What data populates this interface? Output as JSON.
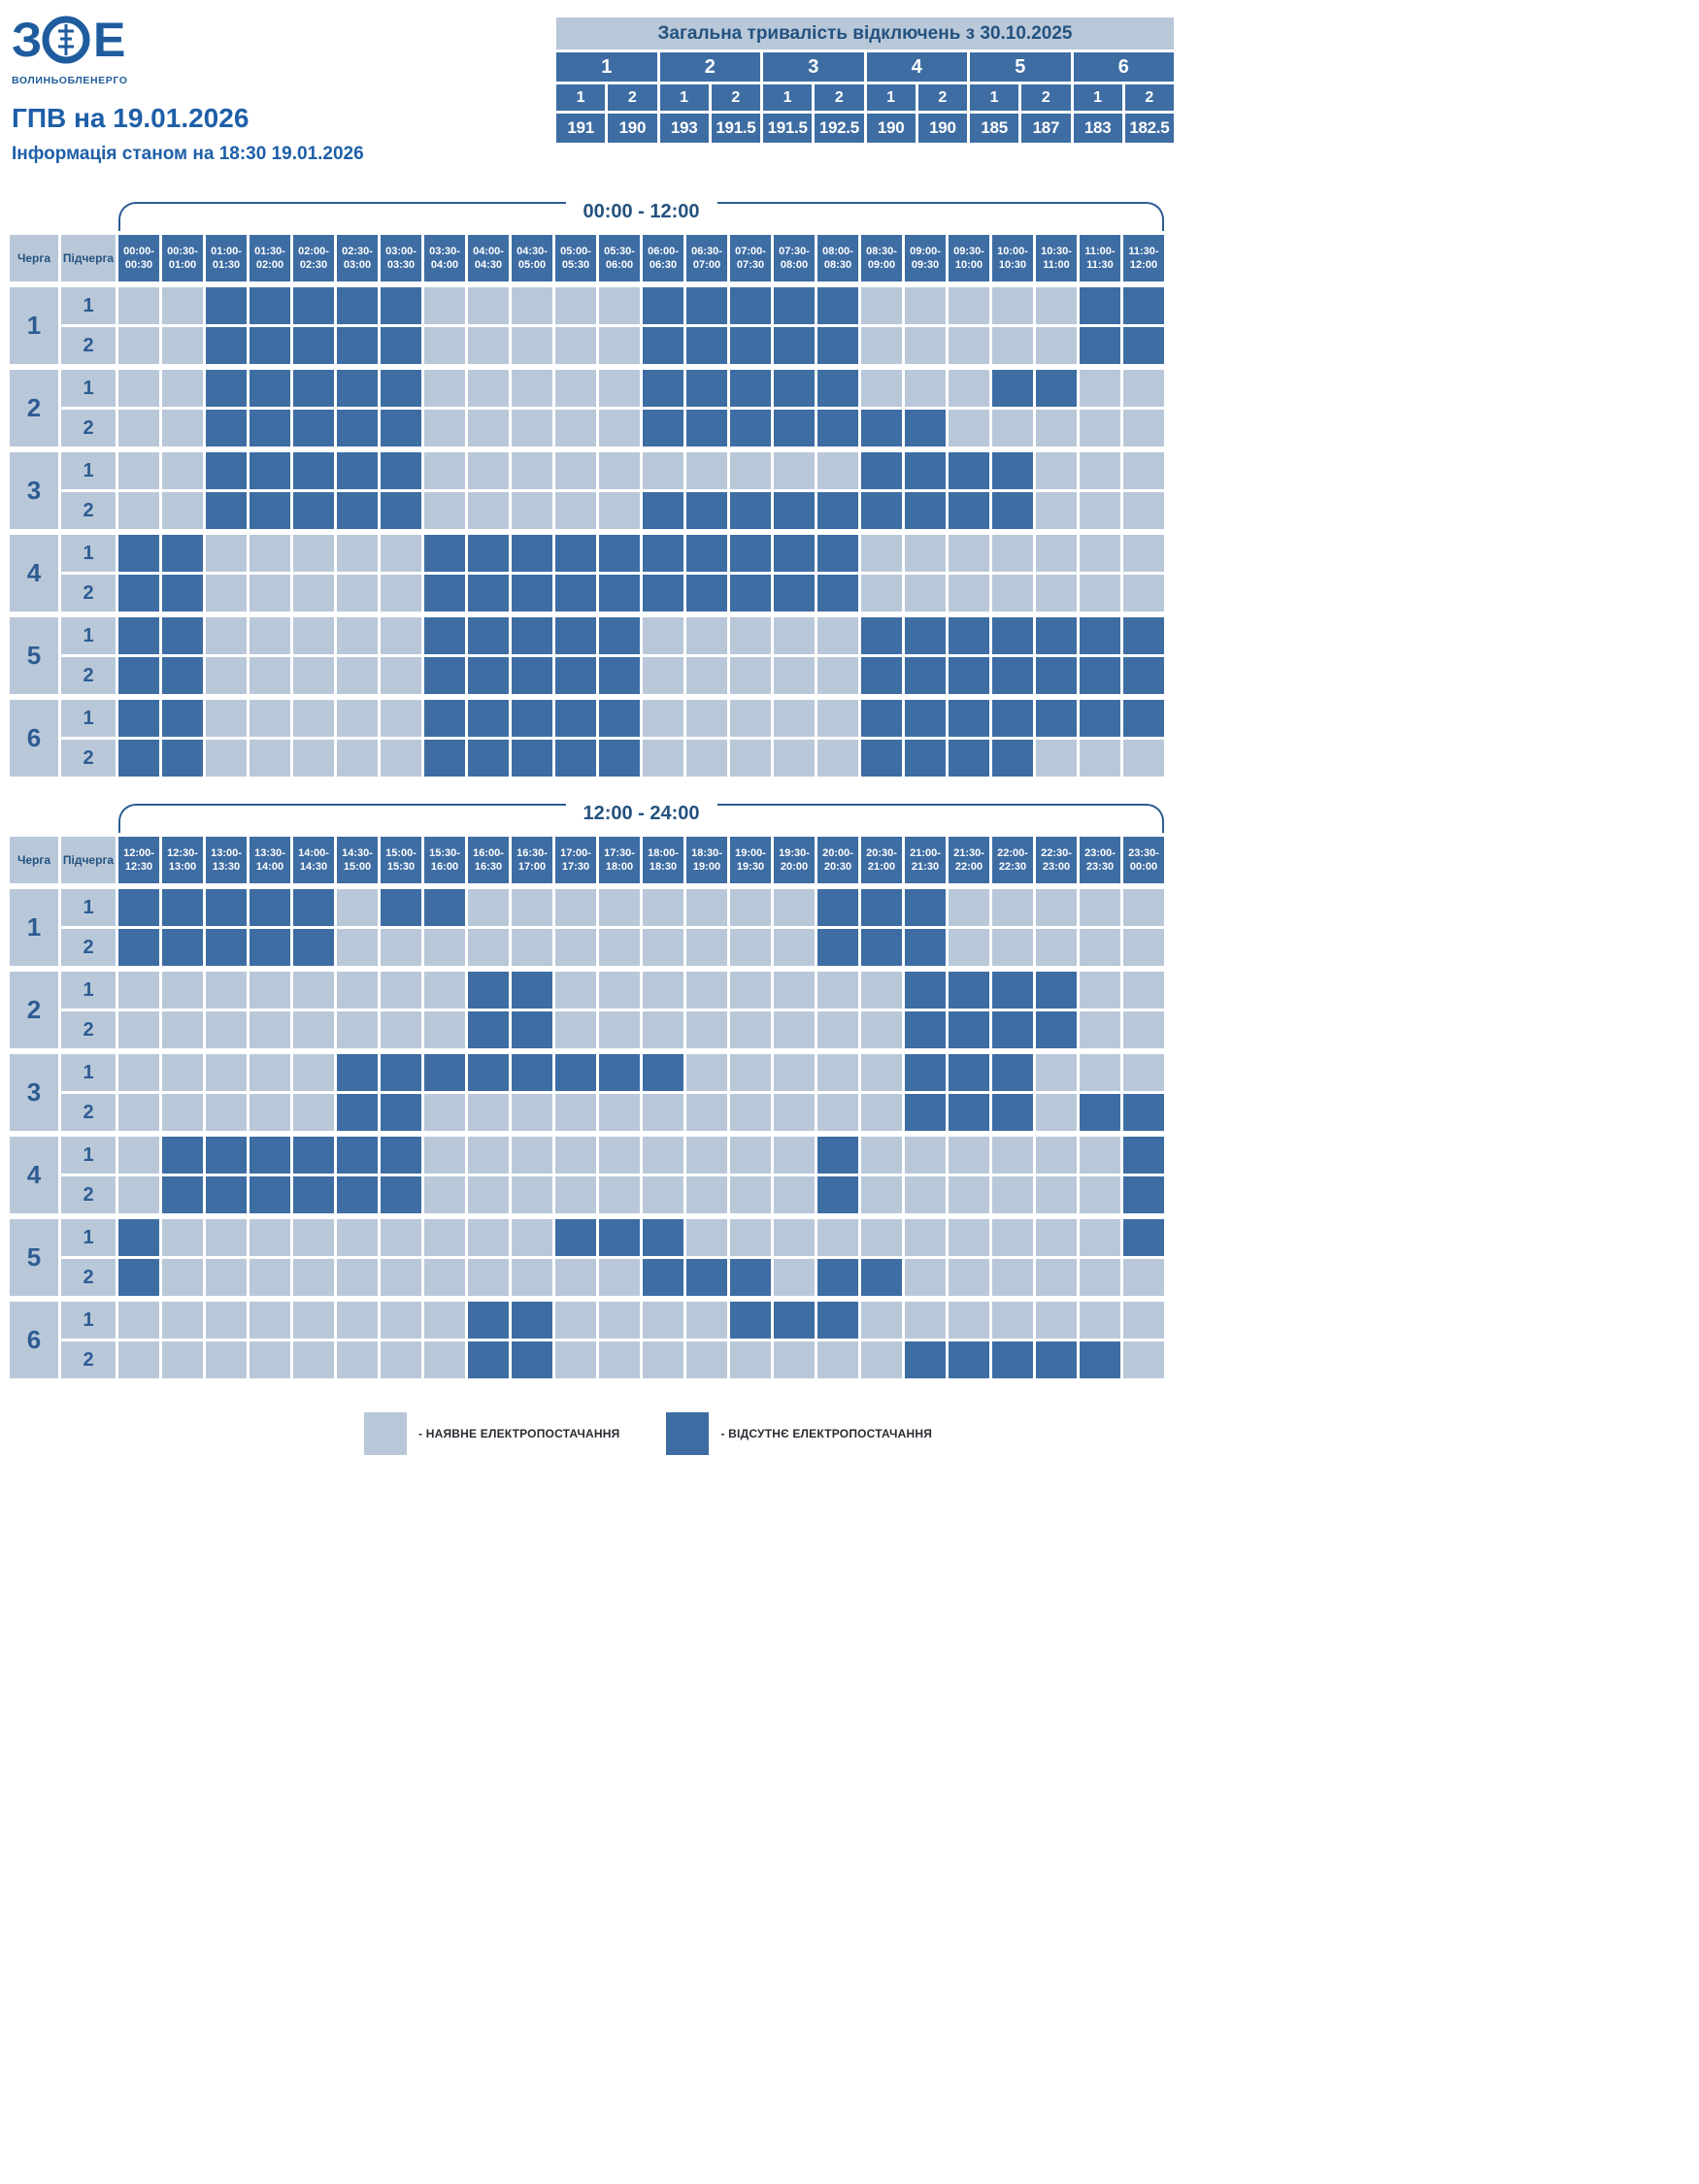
{
  "logo": {
    "mark_left": "З",
    "mark_right": "Е",
    "company": "ВОЛИНЬОБЛЕНЕРГО"
  },
  "header": {
    "title": "ГПВ на 19.01.2026",
    "subtitle": "Інформація станом на 18:30 19.01.2026"
  },
  "summary": {
    "title": "Загальна тривалість відключень з 30.10.2025",
    "queues": [
      "1",
      "2",
      "3",
      "4",
      "5",
      "6"
    ],
    "subqueues": [
      "1",
      "2",
      "1",
      "2",
      "1",
      "2",
      "1",
      "2",
      "1",
      "2",
      "1",
      "2"
    ],
    "totals": [
      "191",
      "190",
      "193",
      "191.5",
      "191.5",
      "192.5",
      "190",
      "190",
      "185",
      "187",
      "183",
      "182.5"
    ]
  },
  "grid_headers": {
    "queue": "Черга",
    "subqueue": "Підчерга"
  },
  "colors": {
    "on": "#b9c8d9",
    "off": "#3e6da3",
    "accent": "#1e5fa8"
  },
  "legend": {
    "on": "- НАЯВНЕ ЕЛЕКТРОПОСТАЧАННЯ",
    "off": "- ВІДСУТНЄ ЕЛЕКТРОПОСТАЧАННЯ"
  },
  "chart_data": [
    {
      "type": "heatmap",
      "title": "00:00 - 12:00",
      "encoding": {
        "0": "power available",
        "1": "power outage"
      },
      "time_slots": [
        "00:00-00:30",
        "00:30-01:00",
        "01:00-01:30",
        "01:30-02:00",
        "02:00-02:30",
        "02:30-03:00",
        "03:00-03:30",
        "03:30-04:00",
        "04:00-04:30",
        "04:30-05:00",
        "05:00-05:30",
        "05:30-06:00",
        "06:00-06:30",
        "06:30-07:00",
        "07:00-07:30",
        "07:30-08:00",
        "08:00-08:30",
        "08:30-09:00",
        "09:00-09:30",
        "09:30-10:00",
        "10:00-10:30",
        "10:30-11:00",
        "11:00-11:30",
        "11:30-12:00"
      ],
      "rows": [
        {
          "queue": "1",
          "subqueue": "1",
          "outage": "001111100000111110000011"
        },
        {
          "queue": "1",
          "subqueue": "2",
          "outage": "001111100000111110000011"
        },
        {
          "queue": "2",
          "subqueue": "1",
          "outage": "001111100000111110001100"
        },
        {
          "queue": "2",
          "subqueue": "2",
          "outage": "001111100000111111100000"
        },
        {
          "queue": "3",
          "subqueue": "1",
          "outage": "001111100000000001111000"
        },
        {
          "queue": "3",
          "subqueue": "2",
          "outage": "001111100000111111111000"
        },
        {
          "queue": "4",
          "subqueue": "1",
          "outage": "110000011111111110000000"
        },
        {
          "queue": "4",
          "subqueue": "2",
          "outage": "110000011111111110000000"
        },
        {
          "queue": "5",
          "subqueue": "1",
          "outage": "110000011111000001111111"
        },
        {
          "queue": "5",
          "subqueue": "2",
          "outage": "110000011111000001111111"
        },
        {
          "queue": "6",
          "subqueue": "1",
          "outage": "110000011111000001111111"
        },
        {
          "queue": "6",
          "subqueue": "2",
          "outage": "110000011111000001111000"
        }
      ]
    },
    {
      "type": "heatmap",
      "title": "12:00 - 24:00",
      "encoding": {
        "0": "power available",
        "1": "power outage"
      },
      "time_slots": [
        "12:00-12:30",
        "12:30-13:00",
        "13:00-13:30",
        "13:30-14:00",
        "14:00-14:30",
        "14:30-15:00",
        "15:00-15:30",
        "15:30-16:00",
        "16:00-16:30",
        "16:30-17:00",
        "17:00-17:30",
        "17:30-18:00",
        "18:00-18:30",
        "18:30-19:00",
        "19:00-19:30",
        "19:30-20:00",
        "20:00-20:30",
        "20:30-21:00",
        "21:00-21:30",
        "21:30-22:00",
        "22:00-22:30",
        "22:30-23:00",
        "23:00-23:30",
        "23:30-00:00"
      ],
      "rows": [
        {
          "queue": "1",
          "subqueue": "1",
          "outage": "111110110000000011100000"
        },
        {
          "queue": "1",
          "subqueue": "2",
          "outage": "111110000000000011100000"
        },
        {
          "queue": "2",
          "subqueue": "1",
          "outage": "000000001100000000111100"
        },
        {
          "queue": "2",
          "subqueue": "2",
          "outage": "000000001100000000111100"
        },
        {
          "queue": "3",
          "subqueue": "1",
          "outage": "000001111111100000111000"
        },
        {
          "queue": "3",
          "subqueue": "2",
          "outage": "000001100000000000111011"
        },
        {
          "queue": "4",
          "subqueue": "1",
          "outage": "011111100000000010000001"
        },
        {
          "queue": "4",
          "subqueue": "2",
          "outage": "011111100000000010000001"
        },
        {
          "queue": "5",
          "subqueue": "1",
          "outage": "100000000011100000000001"
        },
        {
          "queue": "5",
          "subqueue": "2",
          "outage": "100000000000111011000000"
        },
        {
          "queue": "6",
          "subqueue": "1",
          "outage": "000000001100001110000000"
        },
        {
          "queue": "6",
          "subqueue": "2",
          "outage": "000000001100000000111110"
        }
      ]
    }
  ]
}
